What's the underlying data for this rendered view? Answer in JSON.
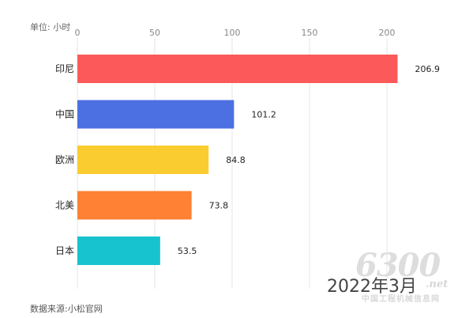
{
  "chart_data": {
    "type": "bar",
    "orientation": "horizontal",
    "unit_label": "单位: 小时",
    "categories": [
      "印尼",
      "中国",
      "欧洲",
      "北美",
      "日本"
    ],
    "values": [
      206.9,
      101.2,
      84.8,
      73.8,
      53.5
    ],
    "value_labels": [
      "206.9",
      "101.2",
      "84.8",
      "73.8",
      "53.5"
    ],
    "colors": [
      "#fc5a5a",
      "#4c6fe2",
      "#fbcc2f",
      "#fe8134",
      "#16c3cf"
    ],
    "xlim": [
      0,
      200
    ],
    "xticks": [
      "0",
      "50",
      "100",
      "150",
      "200"
    ],
    "grid": true,
    "source": "数据来源:小松官网",
    "period": "2022年3月"
  },
  "watermark": {
    "number": "6300",
    "suffix": ".net",
    "cn_text": "中国工程机械信息网"
  }
}
